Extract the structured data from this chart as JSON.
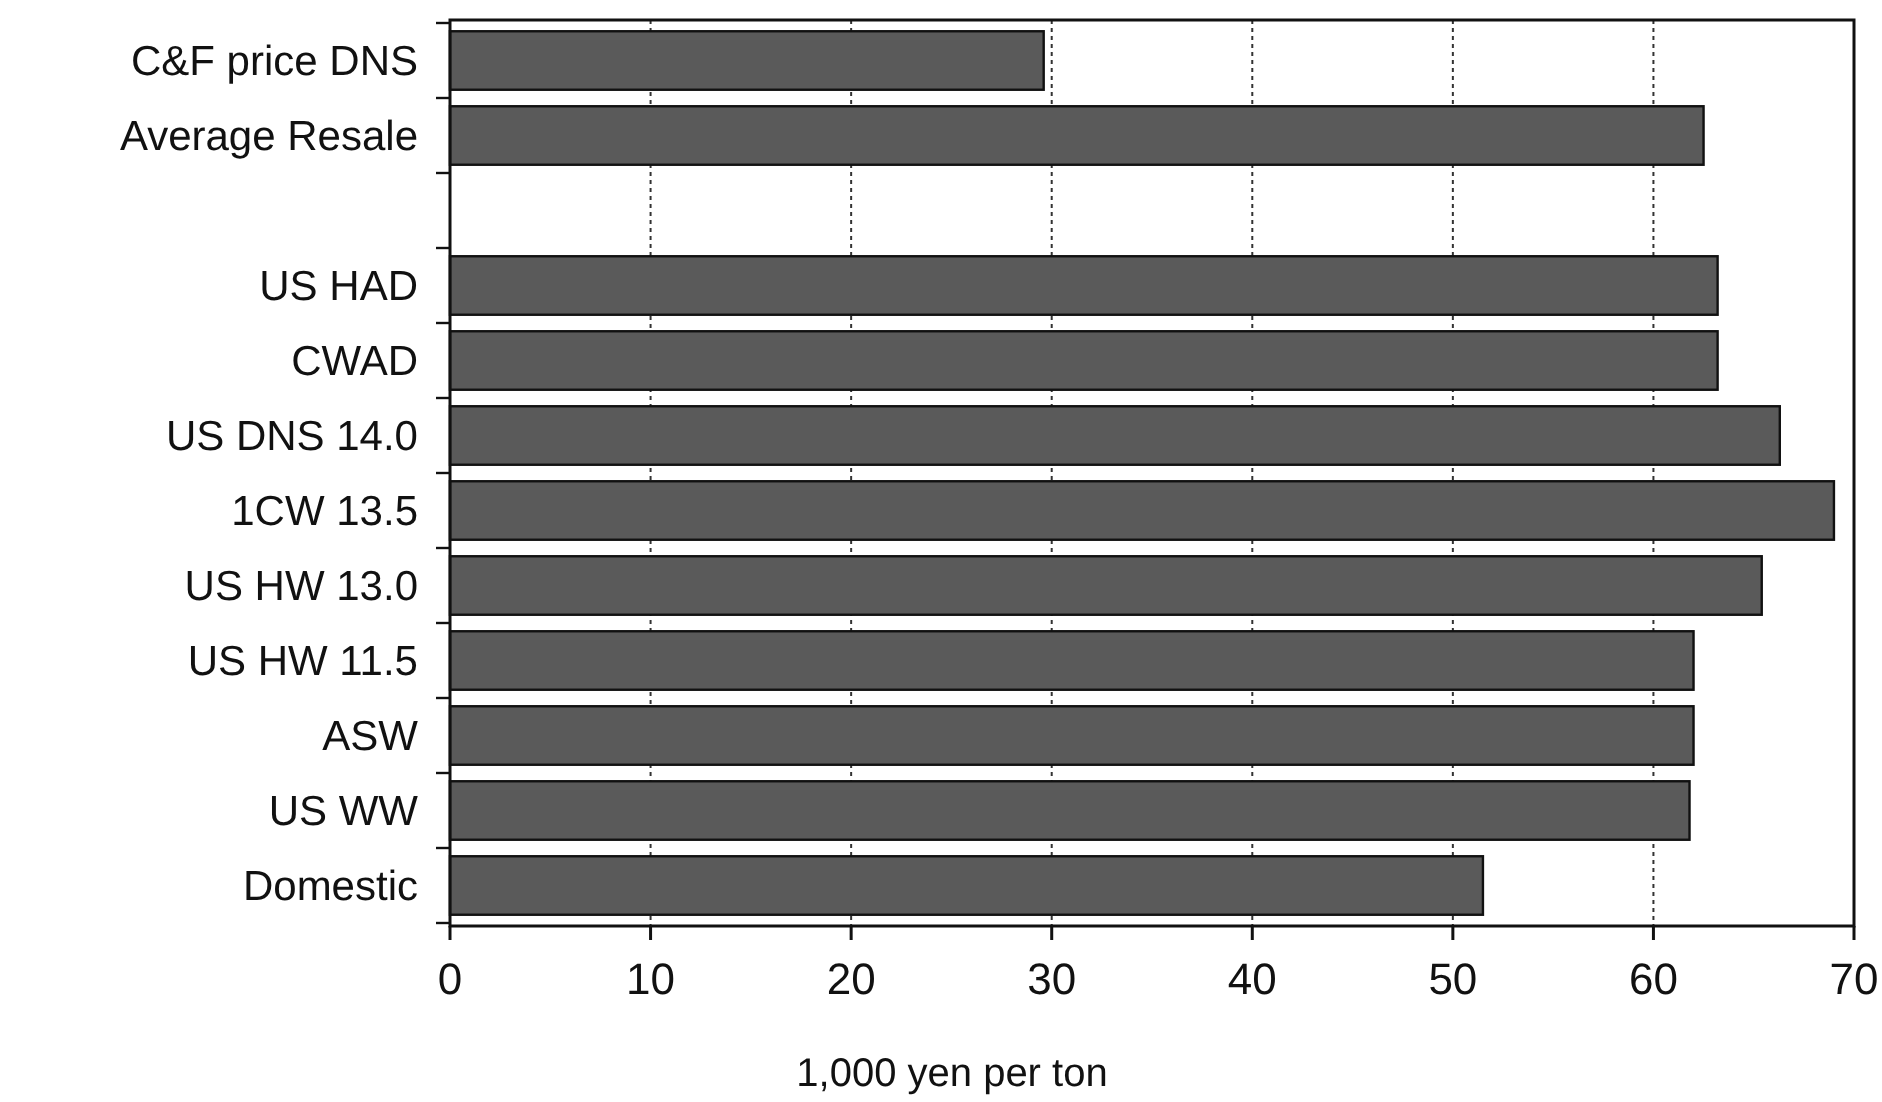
{
  "chart_data": {
    "type": "bar",
    "orientation": "horizontal",
    "xlabel": "1,000 yen per ton",
    "categories": [
      "C&F price DNS",
      "Average Resale",
      null,
      "US HAD",
      "CWAD",
      "US DNS 14.0",
      "1CW 13.5",
      "US HW 13.0",
      "US HW 11.5",
      "ASW",
      "US WW",
      "Domestic"
    ],
    "values": [
      29.6,
      62.5,
      null,
      63.2,
      63.2,
      66.3,
      69.0,
      65.4,
      62.0,
      62.0,
      61.8,
      51.5
    ],
    "color": "#5a5a5a",
    "xlim": [
      0,
      70
    ],
    "xticks": [
      0,
      10,
      20,
      30,
      40,
      50,
      60,
      70
    ],
    "grid": "x"
  }
}
